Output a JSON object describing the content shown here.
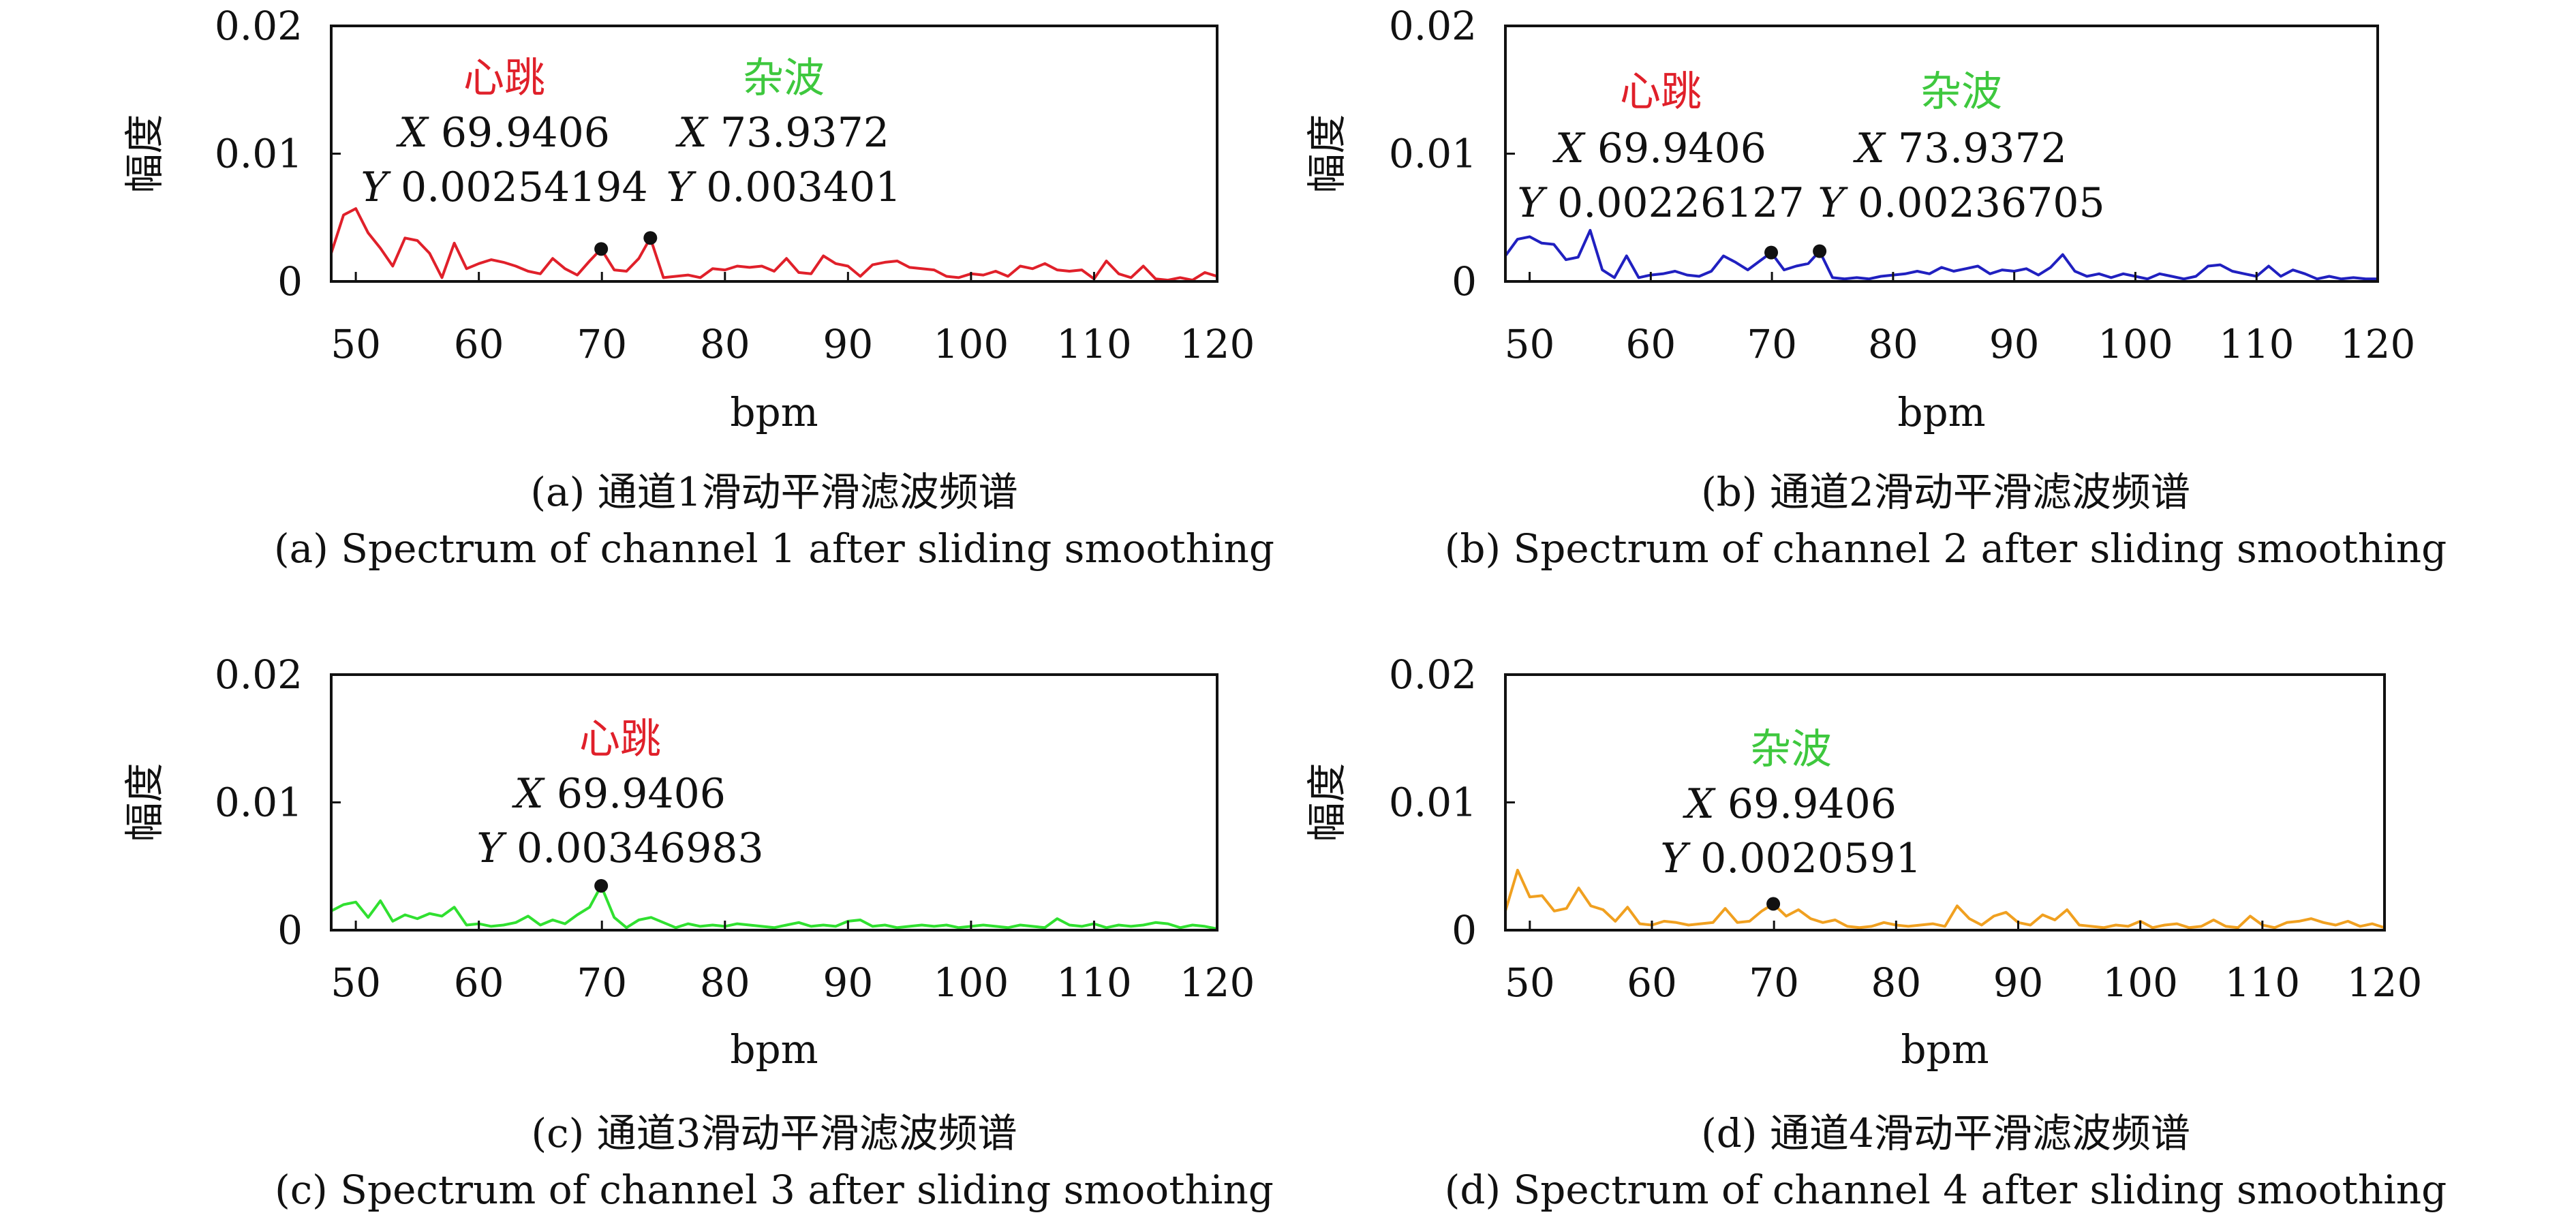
{
  "chart_data": [
    {
      "type": "line",
      "caption_cn": "(a) 通道1滑动平滑滤波频谱",
      "caption_en": "(a) Spectrum of channel 1 after sliding smoothing",
      "xlabel": "bpm",
      "ylabel": "幅度",
      "xlim": [
        48,
        120
      ],
      "ylim": [
        0,
        0.02
      ],
      "x_ticks": [
        "50",
        "60",
        "70",
        "80",
        "90",
        "100",
        "110",
        "120"
      ],
      "y_ticks": [
        "0",
        "0.01",
        "0.02"
      ],
      "grid": false,
      "series": [
        {
          "color": "#e0202a",
          "x": [
            48,
            49,
            50,
            51,
            52,
            53,
            54,
            55,
            56,
            57,
            58,
            59,
            60,
            61,
            62,
            63,
            64,
            65,
            66,
            67,
            68,
            69,
            69.9406,
            71,
            72,
            73,
            73.9372,
            75,
            76,
            77,
            78,
            79,
            80,
            81,
            82,
            83,
            84,
            85,
            86,
            87,
            88,
            89,
            90,
            91,
            92,
            93,
            94,
            95,
            96,
            97,
            98,
            99,
            100,
            101,
            102,
            103,
            104,
            105,
            106,
            107,
            108,
            109,
            110,
            111,
            112,
            113,
            114,
            115,
            116,
            117,
            118,
            119,
            120
          ],
          "y": [
            0.0022,
            0.0052,
            0.0057,
            0.0038,
            0.0026,
            0.0012,
            0.0034,
            0.0032,
            0.0022,
            0.0003,
            0.003,
            0.001,
            0.0014,
            0.0017,
            0.0015,
            0.0012,
            0.0008,
            0.0006,
            0.0018,
            0.001,
            0.0005,
            0.0016,
            0.00254194,
            0.0009,
            0.0008,
            0.0018,
            0.003401,
            0.0003,
            0.0004,
            0.0005,
            0.0003,
            0.001,
            0.0009,
            0.0012,
            0.0011,
            0.0012,
            0.0008,
            0.0018,
            0.0007,
            0.0006,
            0.002,
            0.0014,
            0.0012,
            0.0004,
            0.0013,
            0.0015,
            0.0016,
            0.0011,
            0.001,
            0.0009,
            0.0004,
            0.0003,
            0.0006,
            0.0005,
            0.0008,
            0.0004,
            0.0012,
            0.001,
            0.0014,
            0.0009,
            0.0008,
            0.0009,
            0.0002,
            0.0016,
            0.0006,
            0.0003,
            0.0012,
            0.0002,
            0.0001,
            0.0003,
            0.0001,
            0.0007,
            0.0004
          ]
        }
      ],
      "markers": [
        {
          "name": "心跳",
          "color": "#e0202a",
          "x": 69.9406,
          "y": 0.00254194,
          "x_text": "69.9406",
          "y_text": "0.00254194"
        },
        {
          "name": "杂波",
          "color": "#3ec83e",
          "x": 73.9372,
          "y": 0.003401,
          "x_text": "73.9372",
          "y_text": "0.003401"
        }
      ]
    },
    {
      "type": "line",
      "caption_cn": "(b) 通道2滑动平滑滤波频谱",
      "caption_en": "(b) Spectrum of channel 2 after sliding smoothing",
      "xlabel": "bpm",
      "ylabel": "幅度",
      "xlim": [
        48,
        120
      ],
      "ylim": [
        0,
        0.02
      ],
      "x_ticks": [
        "50",
        "60",
        "70",
        "80",
        "90",
        "100",
        "110",
        "120"
      ],
      "y_ticks": [
        "0",
        "0.01",
        "0.02"
      ],
      "grid": false,
      "series": [
        {
          "color": "#2020c0",
          "x": [
            48,
            49,
            50,
            51,
            52,
            53,
            54,
            55,
            56,
            57,
            58,
            59,
            60,
            61,
            62,
            63,
            64,
            65,
            66,
            67,
            68,
            69,
            69.9406,
            71,
            72,
            73,
            73.9372,
            75,
            76,
            77,
            78,
            79,
            80,
            81,
            82,
            83,
            84,
            85,
            86,
            87,
            88,
            89,
            90,
            91,
            92,
            93,
            94,
            95,
            96,
            97,
            98,
            99,
            100,
            101,
            102,
            103,
            104,
            105,
            106,
            107,
            108,
            109,
            110,
            111,
            112,
            113,
            114,
            115,
            116,
            117,
            118,
            119,
            120
          ],
          "y": [
            0.002,
            0.0033,
            0.0035,
            0.003,
            0.0029,
            0.0017,
            0.0019,
            0.004,
            0.0009,
            0.0003,
            0.002,
            0.0003,
            0.0005,
            0.0006,
            0.0008,
            0.0005,
            0.0004,
            0.0008,
            0.002,
            0.0015,
            0.0009,
            0.0016,
            0.00226127,
            0.0009,
            0.0012,
            0.0014,
            0.00236705,
            0.0003,
            0.0002,
            0.0003,
            0.0002,
            0.0004,
            0.0005,
            0.0006,
            0.0008,
            0.0006,
            0.0011,
            0.0008,
            0.001,
            0.0012,
            0.0006,
            0.0009,
            0.0008,
            0.001,
            0.0005,
            0.0011,
            0.0021,
            0.0008,
            0.0004,
            0.0006,
            0.0003,
            0.0006,
            0.0004,
            0.0002,
            0.0006,
            0.0004,
            0.0002,
            0.0004,
            0.0012,
            0.0013,
            0.0008,
            0.0006,
            0.0004,
            0.0012,
            0.0004,
            0.0009,
            0.0006,
            0.0002,
            0.0004,
            0.0002,
            0.0003,
            0.0002,
            0.0002
          ]
        }
      ],
      "markers": [
        {
          "name": "心跳",
          "color": "#e0202a",
          "x": 69.9406,
          "y": 0.00226127,
          "x_text": "69.9406",
          "y_text": "0.00226127"
        },
        {
          "name": "杂波",
          "color": "#3ec83e",
          "x": 73.9372,
          "y": 0.00236705,
          "x_text": "73.9372",
          "y_text": "0.00236705"
        }
      ]
    },
    {
      "type": "line",
      "caption_cn": "(c) 通道3滑动平滑滤波频谱",
      "caption_en": "(c) Spectrum of channel 3 after sliding smoothing",
      "xlabel": "bpm",
      "ylabel": "幅度",
      "xlim": [
        48,
        120
      ],
      "ylim": [
        0,
        0.02
      ],
      "x_ticks": [
        "50",
        "60",
        "70",
        "80",
        "90",
        "100",
        "110",
        "120"
      ],
      "y_ticks": [
        "0",
        "0.01",
        "0.02"
      ],
      "grid": false,
      "series": [
        {
          "color": "#30e030",
          "x": [
            48,
            49,
            50,
            51,
            52,
            53,
            54,
            55,
            56,
            57,
            58,
            59,
            60,
            61,
            62,
            63,
            64,
            65,
            66,
            67,
            68,
            69,
            69.9406,
            71,
            72,
            73,
            74,
            75,
            76,
            77,
            78,
            79,
            80,
            81,
            82,
            83,
            84,
            85,
            86,
            87,
            88,
            89,
            90,
            91,
            92,
            93,
            94,
            95,
            96,
            97,
            98,
            99,
            100,
            101,
            102,
            103,
            104,
            105,
            106,
            107,
            108,
            109,
            110,
            111,
            112,
            113,
            114,
            115,
            116,
            117,
            118,
            119,
            120
          ],
          "y": [
            0.0015,
            0.002,
            0.0022,
            0.001,
            0.0023,
            0.0007,
            0.0012,
            0.0009,
            0.0013,
            0.0011,
            0.0018,
            0.0004,
            0.0005,
            0.0003,
            0.0004,
            0.0006,
            0.0011,
            0.0004,
            0.0008,
            0.0005,
            0.0012,
            0.0018,
            0.00346983,
            0.001,
            0.0002,
            0.0008,
            0.001,
            0.0006,
            0.0002,
            0.0005,
            0.0003,
            0.0004,
            0.0003,
            0.0005,
            0.0004,
            0.0003,
            0.0002,
            0.0004,
            0.0006,
            0.0003,
            0.0004,
            0.0003,
            0.0007,
            0.0008,
            0.0003,
            0.0004,
            0.0002,
            0.0003,
            0.0004,
            0.0003,
            0.0004,
            0.0002,
            0.0003,
            0.0004,
            0.0003,
            0.0002,
            0.0004,
            0.0003,
            0.0002,
            0.0009,
            0.0004,
            0.0003,
            0.0005,
            0.0002,
            0.0004,
            0.0003,
            0.0004,
            0.0006,
            0.0005,
            0.0002,
            0.0004,
            0.0003,
            0.0001
          ]
        }
      ],
      "markers": [
        {
          "name": "心跳",
          "color": "#e0202a",
          "x": 69.9406,
          "y": 0.00346983,
          "x_text": "69.9406",
          "y_text": "0.00346983"
        }
      ]
    },
    {
      "type": "line",
      "caption_cn": "(d) 通道4滑动平滑滤波频谱",
      "caption_en": "(d) Spectrum of channel 4 after sliding smoothing",
      "xlabel": "bpm",
      "ylabel": "幅度",
      "xlim": [
        48,
        120
      ],
      "ylim": [
        0,
        0.02
      ],
      "x_ticks": [
        "50",
        "60",
        "70",
        "80",
        "90",
        "100",
        "110",
        "120"
      ],
      "y_ticks": [
        "0",
        "0.01",
        "0.02"
      ],
      "grid": false,
      "series": [
        {
          "color": "#f0a020",
          "x": [
            48,
            49,
            50,
            51,
            52,
            53,
            54,
            55,
            56,
            57,
            58,
            59,
            60,
            61,
            62,
            63,
            64,
            65,
            66,
            67,
            68,
            69,
            69.9406,
            71,
            72,
            73,
            74,
            75,
            76,
            77,
            78,
            79,
            80,
            81,
            82,
            83,
            84,
            85,
            86,
            87,
            88,
            89,
            90,
            91,
            92,
            93,
            94,
            95,
            96,
            97,
            98,
            99,
            100,
            101,
            102,
            103,
            104,
            105,
            106,
            107,
            108,
            109,
            110,
            111,
            112,
            113,
            114,
            115,
            116,
            117,
            118,
            119,
            120
          ],
          "y": [
            0.0015,
            0.0047,
            0.0026,
            0.0027,
            0.0015,
            0.0017,
            0.0033,
            0.0019,
            0.0016,
            0.0007,
            0.0018,
            0.0005,
            0.0004,
            0.0007,
            0.0006,
            0.0004,
            0.0005,
            0.0006,
            0.0017,
            0.0006,
            0.0007,
            0.0015,
            0.0020591,
            0.0011,
            0.0016,
            0.0009,
            0.0006,
            0.0008,
            0.0003,
            0.0002,
            0.0003,
            0.0006,
            0.0004,
            0.0003,
            0.0004,
            0.0005,
            0.0003,
            0.0019,
            0.0009,
            0.0004,
            0.0011,
            0.0014,
            0.0006,
            0.0004,
            0.0012,
            0.0008,
            0.0016,
            0.0004,
            0.0003,
            0.0002,
            0.0004,
            0.0003,
            0.0007,
            0.0002,
            0.0004,
            0.0005,
            0.0002,
            0.0003,
            0.0008,
            0.0003,
            0.0002,
            0.0011,
            0.0004,
            0.0002,
            0.0006,
            0.0007,
            0.0009,
            0.0006,
            0.0004,
            0.0007,
            0.0003,
            0.0005,
            0.0002
          ]
        }
      ],
      "markers": [
        {
          "name": "杂波",
          "color": "#3ec83e",
          "x": 69.9406,
          "y": 0.0020591,
          "x_text": "69.9406",
          "y_text": "0.0020591"
        }
      ]
    }
  ]
}
